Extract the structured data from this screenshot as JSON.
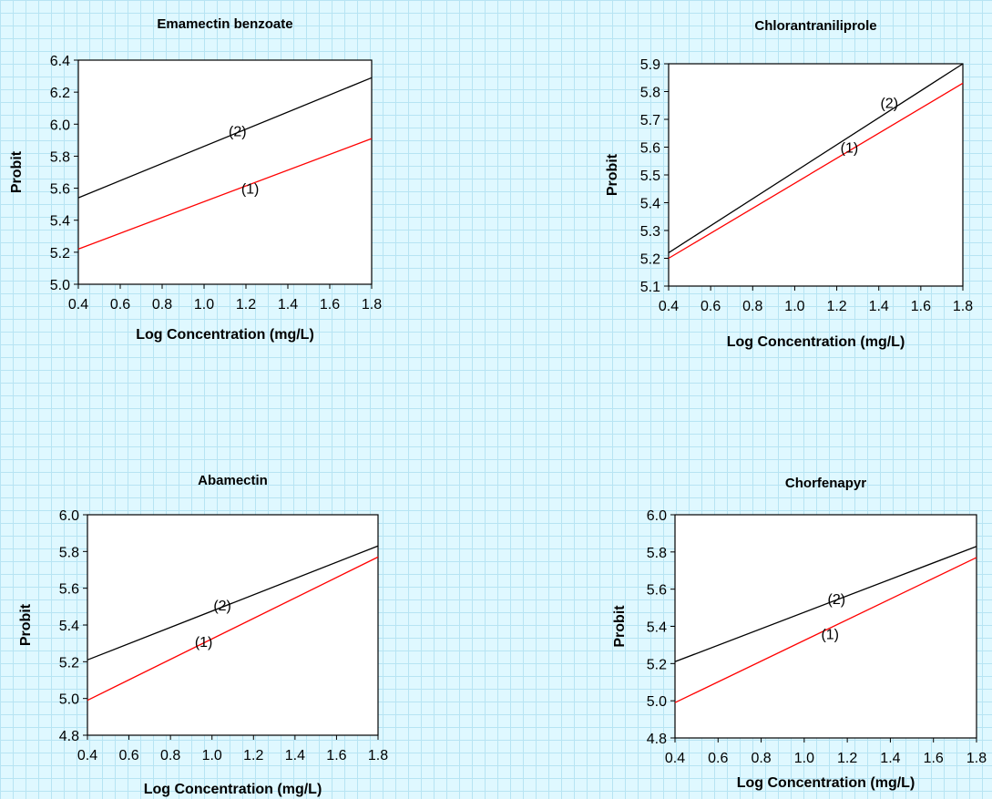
{
  "chart_data": [
    {
      "type": "line",
      "title": "Emamectin benzoate",
      "xlabel": "Log Concentration (mg/L)",
      "ylabel": "Probit",
      "xlim": [
        0.4,
        1.8
      ],
      "ylim": [
        5.0,
        6.4
      ],
      "xticks": [
        "0.4",
        "0.6",
        "0.8",
        "1.0",
        "1.2",
        "1.4",
        "1.6",
        "1.8"
      ],
      "yticks": [
        "5.0",
        "5.2",
        "5.4",
        "5.6",
        "5.8",
        "6.0",
        "6.2",
        "6.4"
      ],
      "grid": false,
      "series": [
        {
          "x": [
            0.4,
            1.8
          ],
          "y": [
            5.22,
            5.91
          ],
          "color": "#ff0000",
          "label": "(1)",
          "label_at": [
            1.22,
            5.6
          ]
        },
        {
          "x": [
            0.4,
            1.8
          ],
          "y": [
            5.54,
            6.29
          ],
          "color": "#000000",
          "label": "(2)",
          "label_at": [
            1.16,
            5.96
          ]
        }
      ]
    },
    {
      "type": "line",
      "title": "Chlorantraniliprole",
      "xlabel": "Log Concentration (mg/L)",
      "ylabel": "Probit",
      "xlim": [
        0.4,
        1.8
      ],
      "ylim": [
        5.1,
        5.9
      ],
      "xticks": [
        "0.4",
        "0.6",
        "0.8",
        "1.0",
        "1.2",
        "1.4",
        "1.6",
        "1.8"
      ],
      "yticks": [
        "5.1",
        "5.2",
        "5.3",
        "5.4",
        "5.5",
        "5.6",
        "5.7",
        "5.8",
        "5.9"
      ],
      "grid": false,
      "series": [
        {
          "x": [
            0.4,
            1.8
          ],
          "y": [
            5.2,
            5.83
          ],
          "color": "#ff0000",
          "label": "(1)",
          "label_at": [
            1.26,
            5.6
          ]
        },
        {
          "x": [
            0.4,
            1.8
          ],
          "y": [
            5.22,
            5.9
          ],
          "color": "#000000",
          "label": "(2)",
          "label_at": [
            1.45,
            5.76
          ]
        }
      ]
    },
    {
      "type": "line",
      "title": "Abamectin",
      "xlabel": "Log Concentration (mg/L)",
      "ylabel": "Probit",
      "xlim": [
        0.4,
        1.8
      ],
      "ylim": [
        4.8,
        6.0
      ],
      "xticks": [
        "0.4",
        "0.6",
        "0.8",
        "1.0",
        "1.2",
        "1.4",
        "1.6",
        "1.8"
      ],
      "yticks": [
        "4.8",
        "5.0",
        "5.2",
        "5.4",
        "5.6",
        "5.8",
        "6.0"
      ],
      "grid": false,
      "series": [
        {
          "x": [
            0.4,
            1.8
          ],
          "y": [
            4.99,
            5.77
          ],
          "color": "#ff0000",
          "label": "(1)",
          "label_at": [
            0.96,
            5.31
          ]
        },
        {
          "x": [
            0.4,
            1.8
          ],
          "y": [
            5.21,
            5.83
          ],
          "color": "#000000",
          "label": "(2)",
          "label_at": [
            1.05,
            5.51
          ]
        }
      ]
    },
    {
      "type": "line",
      "title": "Chorfenapyr",
      "xlabel": "Log Concentration (mg/L)",
      "ylabel": "Probit",
      "xlim": [
        0.4,
        1.8
      ],
      "ylim": [
        4.8,
        6.0
      ],
      "xticks": [
        "0.4",
        "0.6",
        "0.8",
        "1.0",
        "1.2",
        "1.4",
        "1.6",
        "1.8"
      ],
      "yticks": [
        "4.8",
        "5.0",
        "5.2",
        "5.4",
        "5.6",
        "5.8",
        "6.0"
      ],
      "grid": false,
      "series": [
        {
          "x": [
            0.4,
            1.8
          ],
          "y": [
            4.99,
            5.77
          ],
          "color": "#ff0000",
          "label": "(1)",
          "label_at": [
            1.12,
            5.36
          ]
        },
        {
          "x": [
            0.4,
            1.8
          ],
          "y": [
            5.21,
            5.83
          ],
          "color": "#000000",
          "label": "(2)",
          "label_at": [
            1.15,
            5.55
          ]
        }
      ]
    }
  ]
}
